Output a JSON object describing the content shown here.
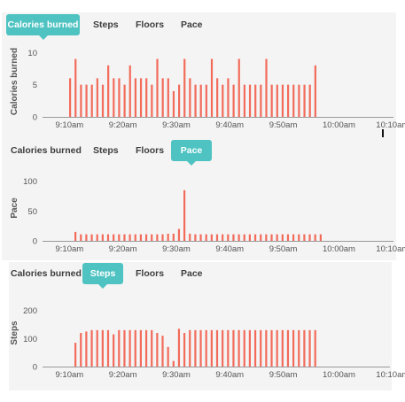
{
  "tab_labels": [
    "Calories burned",
    "Steps",
    "Floors",
    "Pace"
  ],
  "colors": {
    "bar": "#f26b5b",
    "tab_active": "#4ec3c2",
    "axis": "#9a9a9a",
    "text": "#555555"
  },
  "x_tick_labels": [
    "9:10am",
    "9:20am",
    "9:30am",
    "9:40am",
    "9:50am",
    "10:00am",
    "10:10am"
  ],
  "panels": [
    {
      "active_tab": "Calories burned",
      "chart_data": {
        "type": "bar",
        "ylabel": "Calories burned",
        "yticks": [
          0,
          5,
          10
        ],
        "ylim": [
          0,
          11
        ],
        "x_start": "9:06am",
        "x_interval_minutes": 1,
        "values": [
          6,
          9,
          5,
          5,
          5,
          6,
          5,
          8,
          6,
          6,
          5,
          8,
          6,
          6,
          6,
          5,
          9,
          6,
          6,
          4,
          5,
          9,
          6,
          5,
          5,
          5,
          9,
          6,
          5,
          6,
          5,
          9,
          5,
          5,
          5,
          5,
          9,
          5,
          5,
          5,
          5,
          5,
          5,
          5,
          5,
          8
        ]
      }
    },
    {
      "active_tab": "Pace",
      "chart_data": {
        "type": "bar",
        "ylabel": "Pace",
        "yticks": [
          0,
          50,
          100
        ],
        "ylim": [
          0,
          110
        ],
        "x_start": "9:06am",
        "x_interval_minutes": 1,
        "values": [
          15,
          11,
          11,
          11,
          11,
          11,
          11,
          11,
          11,
          11,
          11,
          11,
          11,
          11,
          11,
          11,
          11,
          12,
          12,
          20,
          85,
          12,
          11,
          11,
          11,
          11,
          11,
          11,
          11,
          11,
          11,
          11,
          11,
          11,
          11,
          11,
          11,
          11,
          11,
          11,
          11,
          11,
          11,
          11,
          11,
          11
        ]
      }
    },
    {
      "active_tab": "Steps",
      "chart_data": {
        "type": "bar",
        "ylabel": "Steps",
        "yticks": [
          0,
          100,
          200
        ],
        "ylim": [
          0,
          240
        ],
        "x_start": "9:08am",
        "x_interval_minutes": 1,
        "values": [
          85,
          120,
          125,
          130,
          130,
          130,
          130,
          115,
          130,
          130,
          130,
          130,
          130,
          130,
          130,
          120,
          110,
          70,
          20,
          135,
          120,
          130,
          130,
          130,
          130,
          130,
          130,
          130,
          130,
          130,
          130,
          130,
          130,
          130,
          130,
          130,
          130,
          130,
          130,
          130,
          130,
          130,
          130,
          130,
          130
        ]
      }
    }
  ]
}
